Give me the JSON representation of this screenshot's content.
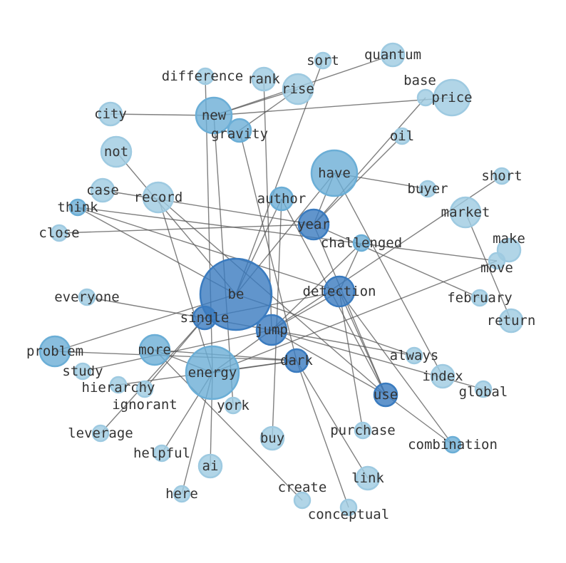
{
  "palette": {
    "light": "#9ecae1",
    "medium": "#6baed6",
    "dark": "#3a7bbf",
    "edge": "#555555",
    "text": "#333333"
  },
  "nodes": [
    {
      "label": "quantum",
      "tone": "light",
      "size": 2
    },
    {
      "label": "sort",
      "tone": "light",
      "size": 1
    },
    {
      "label": "difference",
      "tone": "light",
      "size": 1
    },
    {
      "label": "rank",
      "tone": "light",
      "size": 2
    },
    {
      "label": "rise",
      "tone": "light",
      "size": 3
    },
    {
      "label": "base",
      "tone": "light",
      "size": 1
    },
    {
      "label": "price",
      "tone": "light",
      "size": 4
    },
    {
      "label": "city",
      "tone": "light",
      "size": 2
    },
    {
      "label": "new",
      "tone": "medium",
      "size": 4
    },
    {
      "label": "gravity",
      "tone": "medium",
      "size": 2
    },
    {
      "label": "oil",
      "tone": "light",
      "size": 1
    },
    {
      "label": "not",
      "tone": "light",
      "size": 3
    },
    {
      "label": "have",
      "tone": "medium",
      "size": 5
    },
    {
      "label": "short",
      "tone": "light",
      "size": 1
    },
    {
      "label": "case",
      "tone": "light",
      "size": 2
    },
    {
      "label": "record",
      "tone": "light",
      "size": 3
    },
    {
      "label": "author",
      "tone": "medium",
      "size": 2
    },
    {
      "label": "buyer",
      "tone": "light",
      "size": 1
    },
    {
      "label": "think",
      "tone": "medium",
      "size": 1
    },
    {
      "label": "market",
      "tone": "light",
      "size": 3
    },
    {
      "label": "year",
      "tone": "dark",
      "size": 3
    },
    {
      "label": "close",
      "tone": "light",
      "size": 1
    },
    {
      "label": "challenged",
      "tone": "medium",
      "size": 1
    },
    {
      "label": "make",
      "tone": "light",
      "size": 2
    },
    {
      "label": "move",
      "tone": "light",
      "size": 1
    },
    {
      "label": "be",
      "tone": "dark",
      "size": 8
    },
    {
      "label": "detection",
      "tone": "dark",
      "size": 3
    },
    {
      "label": "everyone",
      "tone": "light",
      "size": 1
    },
    {
      "label": "february",
      "tone": "light",
      "size": 1
    },
    {
      "label": "single",
      "tone": "dark",
      "size": 2
    },
    {
      "label": "jump",
      "tone": "dark",
      "size": 3
    },
    {
      "label": "return",
      "tone": "light",
      "size": 2
    },
    {
      "label": "problem",
      "tone": "medium",
      "size": 3
    },
    {
      "label": "more",
      "tone": "medium",
      "size": 3
    },
    {
      "label": "always",
      "tone": "light",
      "size": 1
    },
    {
      "label": "dark",
      "tone": "dark",
      "size": 2
    },
    {
      "label": "energy",
      "tone": "medium",
      "size": 6
    },
    {
      "label": "study",
      "tone": "light",
      "size": 1
    },
    {
      "label": "index",
      "tone": "light",
      "size": 2
    },
    {
      "label": "hierarchy",
      "tone": "light",
      "size": 1
    },
    {
      "label": "ignorant",
      "tone": "light",
      "size": 1
    },
    {
      "label": "global",
      "tone": "light",
      "size": 1
    },
    {
      "label": "use",
      "tone": "dark",
      "size": 2
    },
    {
      "label": "york",
      "tone": "light",
      "size": 1
    },
    {
      "label": "purchase",
      "tone": "light",
      "size": 1
    },
    {
      "label": "leverage",
      "tone": "light",
      "size": 1
    },
    {
      "label": "buy",
      "tone": "light",
      "size": 2
    },
    {
      "label": "combination",
      "tone": "medium",
      "size": 1
    },
    {
      "label": "helpful",
      "tone": "light",
      "size": 1
    },
    {
      "label": "ai",
      "tone": "light",
      "size": 2
    },
    {
      "label": "link",
      "tone": "light",
      "size": 2
    },
    {
      "label": "here",
      "tone": "light",
      "size": 1
    },
    {
      "label": "create",
      "tone": "light",
      "size": 1
    },
    {
      "label": "conceptual",
      "tone": "light",
      "size": 1
    }
  ],
  "edges": [
    [
      "city",
      "new"
    ],
    [
      "new",
      "rise"
    ],
    [
      "new",
      "price"
    ],
    [
      "new",
      "quantum"
    ],
    [
      "gravity",
      "rise"
    ],
    [
      "difference",
      "energy"
    ],
    [
      "rank",
      "jump"
    ],
    [
      "new",
      "york"
    ],
    [
      "gravity",
      "dark"
    ],
    [
      "sort",
      "be"
    ],
    [
      "not",
      "be"
    ],
    [
      "record",
      "use"
    ],
    [
      "case",
      "year"
    ],
    [
      "think",
      "be"
    ],
    [
      "think",
      "move"
    ],
    [
      "close",
      "year"
    ],
    [
      "record",
      "energy"
    ],
    [
      "have",
      "buyer"
    ],
    [
      "have",
      "year"
    ],
    [
      "have",
      "be"
    ],
    [
      "have",
      "index"
    ],
    [
      "base",
      "year"
    ],
    [
      "oil",
      "year"
    ],
    [
      "short",
      "jump"
    ],
    [
      "market",
      "return"
    ],
    [
      "year",
      "february"
    ],
    [
      "challenged",
      "detection"
    ],
    [
      "challenged",
      "jump"
    ],
    [
      "move",
      "energy"
    ],
    [
      "author",
      "use"
    ],
    [
      "author",
      "be"
    ],
    [
      "author",
      "buy"
    ],
    [
      "detection",
      "use"
    ],
    [
      "detection",
      "combination"
    ],
    [
      "detection",
      "purchase"
    ],
    [
      "detection",
      "jump"
    ],
    [
      "think",
      "detection"
    ],
    [
      "everyone",
      "always"
    ],
    [
      "problem",
      "be"
    ],
    [
      "problem",
      "dark"
    ],
    [
      "more",
      "dark"
    ],
    [
      "more",
      "create"
    ],
    [
      "more",
      "energy"
    ],
    [
      "study",
      "jump"
    ],
    [
      "hierarchy",
      "dark"
    ],
    [
      "ignorant",
      "single"
    ],
    [
      "leverage",
      "single"
    ],
    [
      "energy",
      "helpful"
    ],
    [
      "energy",
      "here"
    ],
    [
      "energy",
      "ai"
    ],
    [
      "energy",
      "dark"
    ],
    [
      "energy",
      "jump"
    ],
    [
      "jump",
      "use"
    ],
    [
      "jump",
      "global"
    ],
    [
      "dark",
      "link"
    ],
    [
      "dark",
      "conceptual"
    ],
    [
      "use",
      "combination"
    ],
    [
      "year",
      "use"
    ],
    [
      "single",
      "detection"
    ],
    [
      "be",
      "always"
    ]
  ]
}
